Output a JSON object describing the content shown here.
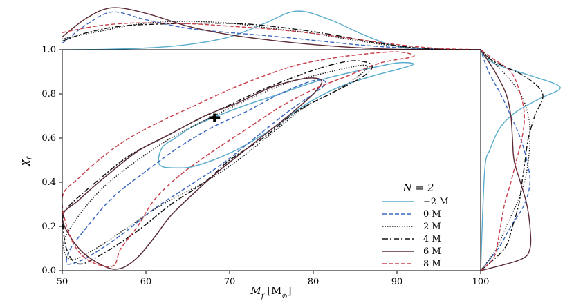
{
  "chart_data": {
    "type": "contour",
    "title": "",
    "xlabel": "M_f [M⊙]",
    "ylabel": "χ_f",
    "xlim": [
      50,
      100
    ],
    "ylim": [
      0.0,
      1.0
    ],
    "x_ticks": [
      50,
      60,
      70,
      80,
      90,
      100
    ],
    "y_ticks": [
      0.0,
      0.2,
      0.4,
      0.6,
      0.8,
      1.0
    ],
    "x_tick_labels": [
      "50",
      "60",
      "70",
      "80",
      "90",
      "100"
    ],
    "y_tick_labels": [
      "0.0",
      "0.2",
      "0.4",
      "0.6",
      "0.8",
      "1.0"
    ],
    "legend_title": "N = 2",
    "legend_position": "bottom-right",
    "injection_marker": {
      "x": 68.2,
      "y": 0.692
    },
    "series": [
      {
        "name": "−2 M",
        "color": "#5aaccc",
        "dash": "solid",
        "contour": [
          [
            62,
            0.47
          ],
          [
            61.5,
            0.5
          ],
          [
            62,
            0.56
          ],
          [
            63.5,
            0.6
          ],
          [
            65.5,
            0.65
          ],
          [
            68.5,
            0.7
          ],
          [
            72,
            0.75
          ],
          [
            76,
            0.8
          ],
          [
            79,
            0.84
          ],
          [
            82,
            0.875
          ],
          [
            86,
            0.91
          ],
          [
            90,
            0.94
          ],
          [
            92,
            0.935
          ],
          [
            90,
            0.91
          ],
          [
            87,
            0.88
          ],
          [
            83,
            0.83
          ],
          [
            79,
            0.75
          ],
          [
            75,
            0.64
          ],
          [
            71,
            0.55
          ],
          [
            68,
            0.5
          ],
          [
            65.5,
            0.47
          ],
          [
            64,
            0.465
          ],
          [
            62,
            0.47
          ]
        ],
        "top_marginal": [
          [
            50,
            0
          ],
          [
            55,
            0.01
          ],
          [
            60,
            0.04
          ],
          [
            65,
            0.12
          ],
          [
            70,
            0.3
          ],
          [
            74,
            0.6
          ],
          [
            78,
            0.9
          ],
          [
            82,
            0.7
          ],
          [
            86,
            0.35
          ],
          [
            90,
            0.08
          ],
          [
            95,
            0.01
          ],
          [
            100,
            0
          ]
        ],
        "right_marginal": [
          [
            0,
            0
          ],
          [
            0.45,
            0.05
          ],
          [
            0.55,
            0.12
          ],
          [
            0.65,
            0.25
          ],
          [
            0.72,
            0.45
          ],
          [
            0.78,
            0.75
          ],
          [
            0.83,
            1.0
          ],
          [
            0.88,
            0.65
          ],
          [
            0.93,
            0.22
          ],
          [
            0.97,
            0.05
          ],
          [
            1,
            0
          ]
        ]
      },
      {
        "name": "0 M",
        "color": "#3c68c0",
        "dash": "6,3",
        "contour": [
          [
            50.5,
            0.04
          ],
          [
            51,
            0.1
          ],
          [
            53,
            0.2
          ],
          [
            56,
            0.33
          ],
          [
            60,
            0.45
          ],
          [
            64,
            0.56
          ],
          [
            68,
            0.65
          ],
          [
            72,
            0.72
          ],
          [
            76,
            0.8
          ],
          [
            80,
            0.86
          ],
          [
            81.5,
            0.85
          ],
          [
            80,
            0.8
          ],
          [
            77,
            0.72
          ],
          [
            73,
            0.6
          ],
          [
            69,
            0.48
          ],
          [
            65,
            0.38
          ],
          [
            61,
            0.28
          ],
          [
            57,
            0.16
          ],
          [
            53,
            0.06
          ],
          [
            51,
            0.03
          ],
          [
            50.5,
            0.04
          ]
        ],
        "top_marginal": [
          [
            50,
            0.15
          ],
          [
            53,
            0.6
          ],
          [
            56,
            0.88
          ],
          [
            60,
            0.7
          ],
          [
            65,
            0.5
          ],
          [
            70,
            0.4
          ],
          [
            75,
            0.32
          ],
          [
            80,
            0.22
          ],
          [
            85,
            0.12
          ],
          [
            90,
            0.05
          ],
          [
            95,
            0.01
          ],
          [
            100,
            0
          ]
        ],
        "right_marginal": [
          [
            0,
            0
          ],
          [
            0.1,
            0.22
          ],
          [
            0.2,
            0.38
          ],
          [
            0.3,
            0.55
          ],
          [
            0.4,
            0.62
          ],
          [
            0.5,
            0.58
          ],
          [
            0.6,
            0.5
          ],
          [
            0.7,
            0.38
          ],
          [
            0.8,
            0.25
          ],
          [
            0.9,
            0.1
          ],
          [
            1,
            0
          ]
        ]
      },
      {
        "name": "2 M",
        "color": "#222222",
        "dash": "1.5,2",
        "contour": [
          [
            50.2,
            0.13
          ],
          [
            52,
            0.25
          ],
          [
            55,
            0.38
          ],
          [
            59,
            0.5
          ],
          [
            63,
            0.6
          ],
          [
            67,
            0.68
          ],
          [
            72,
            0.77
          ],
          [
            77,
            0.85
          ],
          [
            82,
            0.9
          ],
          [
            86,
            0.93
          ],
          [
            86,
            0.9
          ],
          [
            83,
            0.82
          ],
          [
            79,
            0.74
          ],
          [
            75,
            0.62
          ],
          [
            71,
            0.5
          ],
          [
            67,
            0.4
          ],
          [
            62,
            0.3
          ],
          [
            58,
            0.2
          ],
          [
            54,
            0.1
          ],
          [
            51,
            0.05
          ],
          [
            50.2,
            0.13
          ]
        ],
        "top_marginal": [
          [
            50,
            0.25
          ],
          [
            55,
            0.45
          ],
          [
            60,
            0.62
          ],
          [
            65,
            0.66
          ],
          [
            70,
            0.62
          ],
          [
            75,
            0.5
          ],
          [
            80,
            0.38
          ],
          [
            85,
            0.22
          ],
          [
            90,
            0.08
          ],
          [
            95,
            0.01
          ],
          [
            100,
            0
          ]
        ],
        "right_marginal": [
          [
            0,
            0
          ],
          [
            0.1,
            0.2
          ],
          [
            0.2,
            0.32
          ],
          [
            0.3,
            0.45
          ],
          [
            0.4,
            0.55
          ],
          [
            0.5,
            0.6
          ],
          [
            0.6,
            0.62
          ],
          [
            0.7,
            0.6
          ],
          [
            0.8,
            0.5
          ],
          [
            0.9,
            0.28
          ],
          [
            1,
            0
          ]
        ]
      },
      {
        "name": "4 M",
        "color": "#111111",
        "dash": "8,3,2,3",
        "contour": [
          [
            50.1,
            0.25
          ],
          [
            51,
            0.3
          ],
          [
            54,
            0.4
          ],
          [
            58,
            0.52
          ],
          [
            62,
            0.6
          ],
          [
            66,
            0.68
          ],
          [
            70,
            0.75
          ],
          [
            74,
            0.82
          ],
          [
            78,
            0.88
          ],
          [
            82,
            0.93
          ],
          [
            85,
            0.95
          ],
          [
            87,
            0.93
          ],
          [
            86,
            0.88
          ],
          [
            82,
            0.8
          ],
          [
            78,
            0.72
          ],
          [
            74,
            0.6
          ],
          [
            70,
            0.5
          ],
          [
            67,
            0.4
          ],
          [
            63,
            0.3
          ],
          [
            59,
            0.18
          ],
          [
            55,
            0.08
          ],
          [
            52,
            0.03
          ],
          [
            50.5,
            0.1
          ],
          [
            50.1,
            0.25
          ]
        ],
        "top_marginal": [
          [
            50,
            0.2
          ],
          [
            53,
            0.4
          ],
          [
            57,
            0.55
          ],
          [
            62,
            0.6
          ],
          [
            67,
            0.62
          ],
          [
            72,
            0.6
          ],
          [
            77,
            0.5
          ],
          [
            82,
            0.36
          ],
          [
            87,
            0.18
          ],
          [
            92,
            0.05
          ],
          [
            96,
            0.01
          ],
          [
            100,
            0
          ]
        ],
        "right_marginal": [
          [
            0,
            0
          ],
          [
            0.1,
            0.3
          ],
          [
            0.2,
            0.4
          ],
          [
            0.3,
            0.48
          ],
          [
            0.4,
            0.52
          ],
          [
            0.5,
            0.56
          ],
          [
            0.6,
            0.6
          ],
          [
            0.7,
            0.68
          ],
          [
            0.8,
            0.78
          ],
          [
            0.88,
            0.55
          ],
          [
            0.95,
            0.15
          ],
          [
            1,
            0
          ]
        ]
      },
      {
        "name": "6 M",
        "color": "#5a2a35",
        "dash": "solid",
        "contour": [
          [
            50,
            0.24
          ],
          [
            52,
            0.32
          ],
          [
            55,
            0.42
          ],
          [
            59,
            0.54
          ],
          [
            63,
            0.62
          ],
          [
            67,
            0.7
          ],
          [
            71,
            0.76
          ],
          [
            75,
            0.83
          ],
          [
            79,
            0.87
          ],
          [
            81,
            0.86
          ],
          [
            80,
            0.8
          ],
          [
            77,
            0.7
          ],
          [
            73,
            0.58
          ],
          [
            69,
            0.46
          ],
          [
            66,
            0.36
          ],
          [
            63,
            0.25
          ],
          [
            61,
            0.15
          ],
          [
            59,
            0.06
          ],
          [
            57,
            0.01
          ],
          [
            55,
            0.02
          ],
          [
            52,
            0.1
          ],
          [
            50,
            0.24
          ]
        ],
        "top_marginal": [
          [
            50,
            0.3
          ],
          [
            53,
            0.75
          ],
          [
            56,
            0.98
          ],
          [
            60,
            0.85
          ],
          [
            65,
            0.55
          ],
          [
            70,
            0.35
          ],
          [
            75,
            0.22
          ],
          [
            80,
            0.12
          ],
          [
            85,
            0.05
          ],
          [
            90,
            0.01
          ],
          [
            100,
            0
          ]
        ],
        "right_marginal": [
          [
            0,
            0
          ],
          [
            0.05,
            0.5
          ],
          [
            0.1,
            0.62
          ],
          [
            0.2,
            0.62
          ],
          [
            0.3,
            0.58
          ],
          [
            0.4,
            0.5
          ],
          [
            0.5,
            0.42
          ],
          [
            0.6,
            0.4
          ],
          [
            0.7,
            0.38
          ],
          [
            0.8,
            0.32
          ],
          [
            0.9,
            0.18
          ],
          [
            1,
            0
          ]
        ]
      },
      {
        "name": "8 M",
        "color": "#c8404c",
        "dash": "6,3",
        "contour": [
          [
            50,
            0.33
          ],
          [
            52,
            0.42
          ],
          [
            55,
            0.52
          ],
          [
            58,
            0.6
          ],
          [
            62,
            0.68
          ],
          [
            66,
            0.75
          ],
          [
            70,
            0.82
          ],
          [
            74,
            0.88
          ],
          [
            78,
            0.93
          ],
          [
            82,
            0.96
          ],
          [
            86,
            0.98
          ],
          [
            90,
            0.99
          ],
          [
            92,
            0.97
          ],
          [
            88,
            0.94
          ],
          [
            84,
            0.88
          ],
          [
            80,
            0.82
          ],
          [
            76,
            0.74
          ],
          [
            72,
            0.64
          ],
          [
            68,
            0.54
          ],
          [
            64,
            0.43
          ],
          [
            61,
            0.32
          ],
          [
            59,
            0.2
          ],
          [
            57,
            0.1
          ],
          [
            56,
            0.02
          ],
          [
            53,
            0.05
          ],
          [
            51,
            0.15
          ],
          [
            50,
            0.33
          ]
        ],
        "top_marginal": [
          [
            50,
            0.4
          ],
          [
            54,
            0.55
          ],
          [
            58,
            0.62
          ],
          [
            62,
            0.62
          ],
          [
            66,
            0.6
          ],
          [
            70,
            0.55
          ],
          [
            75,
            0.48
          ],
          [
            80,
            0.38
          ],
          [
            85,
            0.25
          ],
          [
            90,
            0.12
          ],
          [
            95,
            0.03
          ],
          [
            100,
            0
          ]
        ],
        "right_marginal": [
          [
            0,
            0
          ],
          [
            0.05,
            0.15
          ],
          [
            0.1,
            0.2
          ],
          [
            0.2,
            0.25
          ],
          [
            0.3,
            0.3
          ],
          [
            0.4,
            0.38
          ],
          [
            0.5,
            0.45
          ],
          [
            0.6,
            0.52
          ],
          [
            0.7,
            0.55
          ],
          [
            0.8,
            0.5
          ],
          [
            0.9,
            0.38
          ],
          [
            0.96,
            0.15
          ],
          [
            1,
            0
          ]
        ]
      }
    ]
  }
}
